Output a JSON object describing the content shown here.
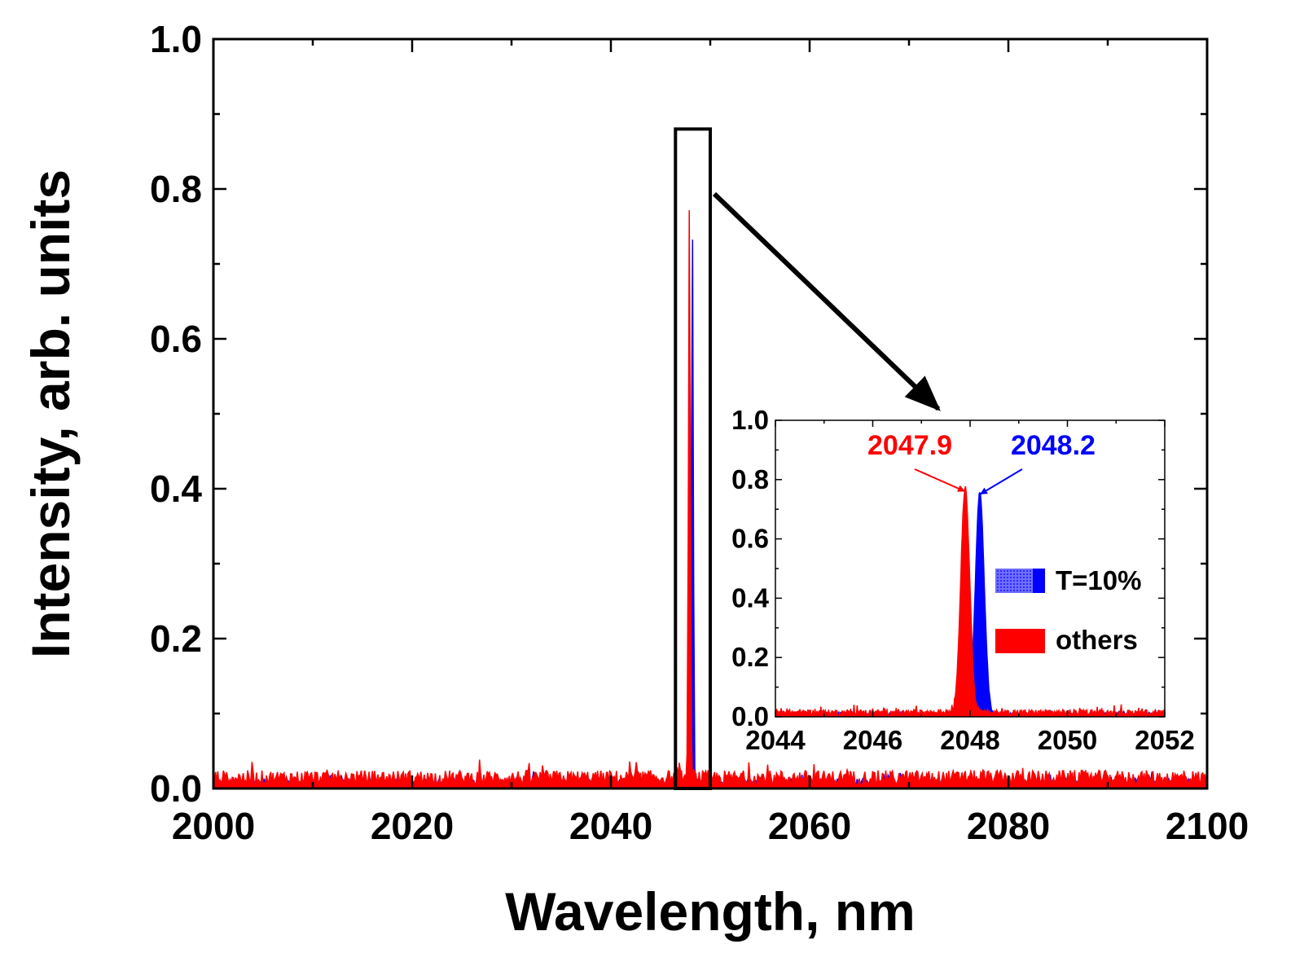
{
  "chart_data": [
    {
      "type": "area",
      "panel": "main",
      "xlabel": "Wavelength, nm",
      "ylabel": "Intensity, arb. units",
      "xlim": [
        2000,
        2100
      ],
      "ylim": [
        0.0,
        1.0
      ],
      "xticks": [
        "2000",
        "2020",
        "2040",
        "2060",
        "2080",
        "2100"
      ],
      "yticks": [
        "0.0",
        "0.2",
        "0.4",
        "0.6",
        "0.8",
        "1.0"
      ],
      "grid": false,
      "series": [
        {
          "name": "T=10%",
          "color": "#0000ff",
          "peak_x": 2048.2,
          "peak_y": 0.75,
          "noise_level": 0.012
        },
        {
          "name": "others",
          "color": "#ff0000",
          "peak_x": 2047.9,
          "peak_y": 0.76,
          "noise_level": 0.022
        }
      ],
      "zoom_box": {
        "x": [
          2046.5,
          2050
        ],
        "y": [
          0.0,
          0.88
        ]
      }
    },
    {
      "type": "area",
      "panel": "inset",
      "xlim": [
        2044,
        2052
      ],
      "ylim": [
        0.0,
        1.0
      ],
      "xticks": [
        "2044",
        "2046",
        "2048",
        "2050",
        "2052"
      ],
      "yticks": [
        "0.0",
        "0.2",
        "0.4",
        "0.6",
        "0.8",
        "1.0"
      ],
      "grid": false,
      "legend_position": "center-right",
      "legend": [
        "T=10%",
        "others"
      ],
      "annotations": [
        {
          "text": "2047.9",
          "x": 2047.9,
          "y": 0.76,
          "color": "#ff0000"
        },
        {
          "text": "2048.2",
          "x": 2048.2,
          "y": 0.75,
          "color": "#0000ff"
        }
      ]
    }
  ]
}
